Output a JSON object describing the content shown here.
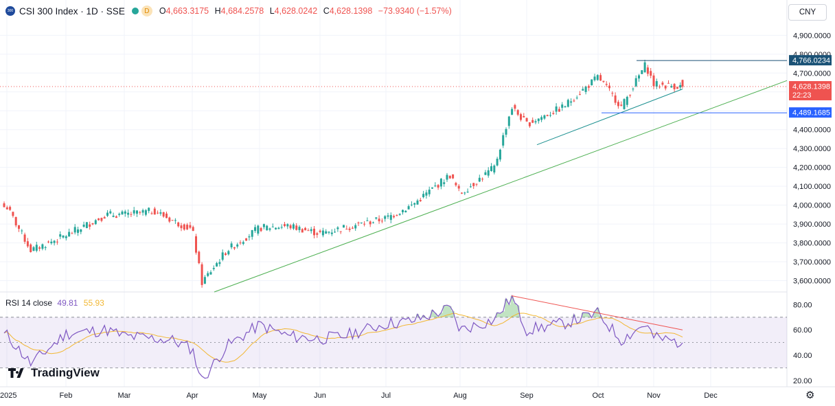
{
  "header": {
    "logo_text": "300",
    "title": "CSI 300 Index · 1D · SSE",
    "badge": "D",
    "open_label": "O",
    "open": "4,663.3175",
    "high_label": "H",
    "high": "4,684.2578",
    "low_label": "L",
    "low": "4,628.0242",
    "close_label": "C",
    "close": "4,628.1398",
    "change": "−73.9340 (−1.57%)"
  },
  "currency_button": "CNY",
  "rsi_header": {
    "label": "RSI 14 close",
    "rsi_value": "49.81",
    "ma_value": "55.93"
  },
  "branding": "TradingView",
  "colors": {
    "up": "#26a69a",
    "down": "#ef5350",
    "rsi": "#7e57c2",
    "rsi_ma": "#f2b732",
    "trendline": "#4caf50",
    "blue_line": "#2962ff"
  },
  "chart_data": [
    {
      "type": "candlestick",
      "title": "CSI 300 Index · 1D · SSE",
      "x_tick_labels": [
        "2025",
        "Feb",
        "Mar",
        "Apr",
        "May",
        "Jun",
        "Jul",
        "Aug",
        "Sep",
        "Oct",
        "Nov",
        "Dec"
      ],
      "y_tick_labels": [
        "4,900.0000",
        "4,800.0000",
        "4,700.0000",
        "4,600.0000",
        "4,500.0000",
        "4,400.0000",
        "4,300.0000",
        "4,200.0000",
        "4,100.0000",
        "4,000.0000",
        "3,900.0000",
        "3,800.0000",
        "3,700.0000",
        "3,600.0000"
      ],
      "ylim": [
        3540,
        4985
      ],
      "price_labels": [
        {
          "text": "4,766.0234",
          "value": 4766.0234
        },
        {
          "text": "4,628.1398",
          "value": 4628.1398,
          "timer": "22:23"
        },
        {
          "text": "4,489.1685",
          "value": 4489.1685
        }
      ],
      "anchors": [
        {
          "month": "2025",
          "price": 3990
        },
        {
          "month": "Jan-mid",
          "price": 3760
        },
        {
          "month": "Feb",
          "price": 3840
        },
        {
          "month": "Feb-late",
          "price": 3950
        },
        {
          "month": "Mar",
          "price": 3950
        },
        {
          "month": "Mar-mid",
          "price": 3970
        },
        {
          "month": "Mar-late",
          "price": 3920
        },
        {
          "month": "Apr",
          "price": 3870
        },
        {
          "month": "Apr-7",
          "price": 3590
        },
        {
          "month": "Apr-mid",
          "price": 3760
        },
        {
          "month": "May",
          "price": 3880
        },
        {
          "month": "May-mid",
          "price": 3890
        },
        {
          "month": "Jun",
          "price": 3850
        },
        {
          "month": "Jun-mid",
          "price": 3880
        },
        {
          "month": "Jul",
          "price": 3930
        },
        {
          "month": "Jul-mid",
          "price": 4000
        },
        {
          "month": "Jul-late",
          "price": 4160
        },
        {
          "month": "Aug",
          "price": 4060
        },
        {
          "month": "Aug-mid",
          "price": 4200
        },
        {
          "month": "Aug-late",
          "price": 4520
        },
        {
          "month": "Sep",
          "price": 4430
        },
        {
          "month": "Sep-mid",
          "price": 4520
        },
        {
          "month": "Oct",
          "price": 4680
        },
        {
          "month": "Oct-mid",
          "price": 4520
        },
        {
          "month": "Oct-late",
          "price": 4745
        },
        {
          "month": "Nov",
          "price": 4640
        },
        {
          "month": "Nov-mid",
          "price": 4628
        }
      ],
      "trendlines": [
        {
          "name": "long-term-support",
          "from": [
            "Apr-late",
            3540
          ],
          "to": [
            "right-edge",
            4660
          ]
        },
        {
          "name": "short-term-support",
          "from": [
            "Sep-early",
            4320
          ],
          "to": [
            "Nov-mid",
            4615
          ]
        },
        {
          "name": "resistance",
          "value": 4766.0234
        },
        {
          "name": "support",
          "value": 4489.1685
        }
      ]
    },
    {
      "type": "line",
      "title": "RSI 14 close",
      "y_tick_labels": [
        "80.00",
        "60.00",
        "40.00",
        "20.00"
      ],
      "ylim": [
        15,
        90
      ],
      "bands": {
        "upper": 70,
        "middle": 50,
        "lower": 30
      },
      "rsi_last": 49.81,
      "rsi_ma_last": 55.93,
      "anchors": [
        {
          "month": "2025",
          "rsi": 56
        },
        {
          "month": "Jan-mid",
          "rsi": 33
        },
        {
          "month": "Feb",
          "rsi": 57
        },
        {
          "month": "Feb-late",
          "rsi": 60
        },
        {
          "month": "Mar",
          "rsi": 55
        },
        {
          "month": "Mar-late",
          "rsi": 52
        },
        {
          "month": "Apr",
          "rsi": 45
        },
        {
          "month": "Apr-7",
          "rsi": 20
        },
        {
          "month": "Apr-mid",
          "rsi": 47
        },
        {
          "month": "May",
          "rsi": 64
        },
        {
          "month": "May-mid",
          "rsi": 55
        },
        {
          "month": "Jun",
          "rsi": 53
        },
        {
          "month": "Jun-mid",
          "rsi": 55
        },
        {
          "month": "Jul",
          "rsi": 65
        },
        {
          "month": "Jul-mid",
          "rsi": 67
        },
        {
          "month": "Jul-late",
          "rsi": 77
        },
        {
          "month": "Aug",
          "rsi": 60
        },
        {
          "month": "Aug-mid",
          "rsi": 68
        },
        {
          "month": "Aug-late",
          "rsi": 86
        },
        {
          "month": "Sep",
          "rsi": 60
        },
        {
          "month": "Sep-mid",
          "rsi": 65
        },
        {
          "month": "Oct",
          "rsi": 73
        },
        {
          "month": "Oct-mid",
          "rsi": 52
        },
        {
          "month": "Oct-late",
          "rsi": 65
        },
        {
          "month": "Nov",
          "rsi": 54
        },
        {
          "month": "Nov-mid",
          "rsi": 49.81
        }
      ],
      "divergence_line": {
        "from": [
          "Aug-late",
          87
        ],
        "to": [
          "Nov-mid",
          60
        ]
      }
    }
  ]
}
